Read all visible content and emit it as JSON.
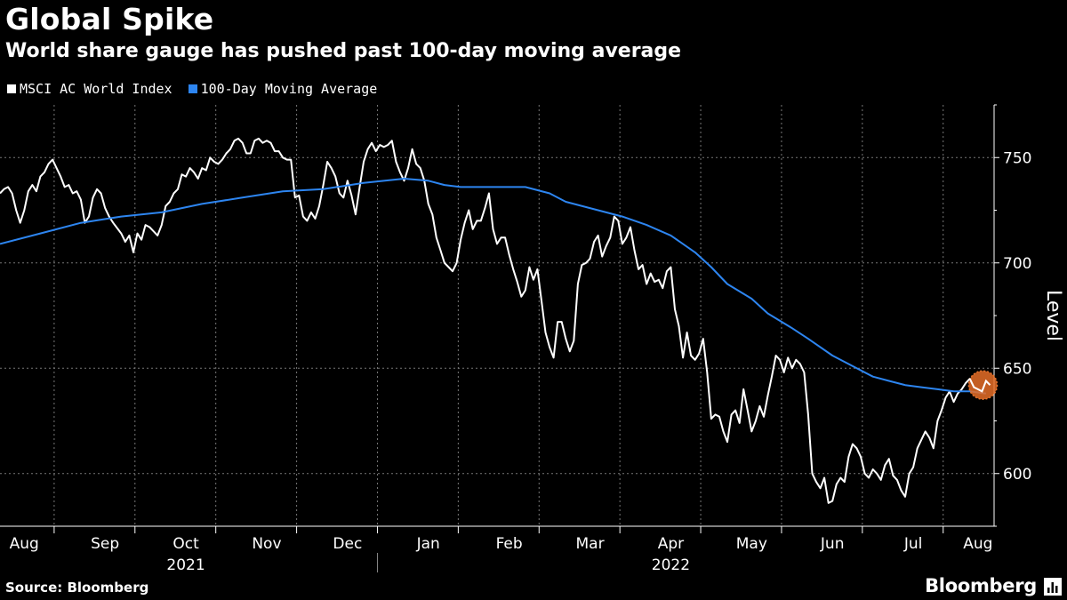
{
  "header": {
    "title": "Global Spike",
    "subtitle": "World share gauge has pushed past 100-day moving average"
  },
  "legend": [
    {
      "label": "MSCI AC World Index",
      "color": "#ffffff"
    },
    {
      "label": "100-Day Moving Average",
      "color": "#2d85f0"
    }
  ],
  "footer": {
    "source": "Source: Bloomberg",
    "brand": "Bloomberg"
  },
  "chart_data": {
    "type": "line",
    "title": "Global Spike",
    "subtitle": "World share gauge has pushed past 100-day moving average",
    "ylabel": "Level",
    "xlabel": "",
    "ylim": [
      575,
      775
    ],
    "yticks": [
      600,
      650,
      700,
      750
    ],
    "grid": true,
    "legend_position": "top-left",
    "x_domain": [
      0,
      12.3
    ],
    "month_labels": [
      {
        "label": "Aug",
        "x": 0.3
      },
      {
        "label": "Sep",
        "x": 1.3
      },
      {
        "label": "Oct",
        "x": 2.3
      },
      {
        "label": "Nov",
        "x": 3.3
      },
      {
        "label": "Dec",
        "x": 4.3
      },
      {
        "label": "Jan",
        "x": 5.3
      },
      {
        "label": "Feb",
        "x": 6.3
      },
      {
        "label": "Mar",
        "x": 7.3
      },
      {
        "label": "Apr",
        "x": 8.3
      },
      {
        "label": "May",
        "x": 9.3
      },
      {
        "label": "Jun",
        "x": 10.3
      },
      {
        "label": "Jul",
        "x": 11.3
      },
      {
        "label": "Aug",
        "x": 12.1
      }
    ],
    "month_separators": [
      0.67,
      1.67,
      2.67,
      3.67,
      4.67,
      5.67,
      6.67,
      7.67,
      8.67,
      9.67,
      10.67,
      11.67
    ],
    "year_labels": [
      {
        "label": "2021",
        "x": 2.3
      },
      {
        "label": "2022",
        "x": 8.3
      }
    ],
    "year_separator": 4.67,
    "highlight": {
      "x": 12.25,
      "y": 642
    },
    "series": [
      {
        "name": "MSCI AC World Index",
        "color": "#ffffff",
        "points": [
          [
            0.0,
            733
          ],
          [
            0.05,
            735
          ],
          [
            0.1,
            736
          ],
          [
            0.15,
            733
          ],
          [
            0.2,
            725
          ],
          [
            0.25,
            719
          ],
          [
            0.3,
            725
          ],
          [
            0.35,
            734
          ],
          [
            0.4,
            737
          ],
          [
            0.45,
            734
          ],
          [
            0.5,
            741
          ],
          [
            0.55,
            743
          ],
          [
            0.6,
            747
          ],
          [
            0.65,
            749
          ],
          [
            0.7,
            745
          ],
          [
            0.75,
            741
          ],
          [
            0.8,
            736
          ],
          [
            0.85,
            737
          ],
          [
            0.9,
            733
          ],
          [
            0.95,
            734
          ],
          [
            1.0,
            730
          ],
          [
            1.05,
            719
          ],
          [
            1.1,
            722
          ],
          [
            1.15,
            731
          ],
          [
            1.2,
            735
          ],
          [
            1.25,
            733
          ],
          [
            1.3,
            726
          ],
          [
            1.35,
            722
          ],
          [
            1.4,
            719
          ],
          [
            1.5,
            714
          ],
          [
            1.55,
            710
          ],
          [
            1.6,
            713
          ],
          [
            1.65,
            705
          ],
          [
            1.7,
            714
          ],
          [
            1.75,
            711
          ],
          [
            1.8,
            718
          ],
          [
            1.85,
            717
          ],
          [
            1.9,
            715
          ],
          [
            1.95,
            713
          ],
          [
            2.0,
            718
          ],
          [
            2.05,
            727
          ],
          [
            2.1,
            729
          ],
          [
            2.15,
            733
          ],
          [
            2.2,
            735
          ],
          [
            2.25,
            742
          ],
          [
            2.3,
            741
          ],
          [
            2.35,
            745
          ],
          [
            2.4,
            743
          ],
          [
            2.45,
            740
          ],
          [
            2.5,
            745
          ],
          [
            2.55,
            744
          ],
          [
            2.6,
            750
          ],
          [
            2.65,
            748
          ],
          [
            2.7,
            747
          ],
          [
            2.75,
            749
          ],
          [
            2.8,
            752
          ],
          [
            2.85,
            754
          ],
          [
            2.9,
            758
          ],
          [
            2.95,
            759
          ],
          [
            3.0,
            757
          ],
          [
            3.05,
            752
          ],
          [
            3.1,
            752
          ],
          [
            3.15,
            758
          ],
          [
            3.2,
            759
          ],
          [
            3.25,
            757
          ],
          [
            3.3,
            758
          ],
          [
            3.35,
            757
          ],
          [
            3.4,
            753
          ],
          [
            3.45,
            753
          ],
          [
            3.5,
            750
          ],
          [
            3.55,
            749
          ],
          [
            3.6,
            749
          ],
          [
            3.65,
            731
          ],
          [
            3.7,
            732
          ],
          [
            3.75,
            722
          ],
          [
            3.8,
            720
          ],
          [
            3.85,
            724
          ],
          [
            3.9,
            721
          ],
          [
            3.95,
            727
          ],
          [
            4.0,
            737
          ],
          [
            4.05,
            748
          ],
          [
            4.1,
            745
          ],
          [
            4.15,
            741
          ],
          [
            4.2,
            733
          ],
          [
            4.25,
            731
          ],
          [
            4.3,
            739
          ],
          [
            4.35,
            732
          ],
          [
            4.4,
            723
          ],
          [
            4.45,
            736
          ],
          [
            4.5,
            748
          ],
          [
            4.55,
            754
          ],
          [
            4.6,
            757
          ],
          [
            4.65,
            753
          ],
          [
            4.7,
            756
          ],
          [
            4.75,
            755
          ],
          [
            4.8,
            756
          ],
          [
            4.85,
            758
          ],
          [
            4.9,
            748
          ],
          [
            4.95,
            743
          ],
          [
            5.0,
            739
          ],
          [
            5.05,
            745
          ],
          [
            5.1,
            754
          ],
          [
            5.15,
            747
          ],
          [
            5.2,
            745
          ],
          [
            5.25,
            739
          ],
          [
            5.3,
            728
          ],
          [
            5.35,
            723
          ],
          [
            5.4,
            712
          ],
          [
            5.45,
            706
          ],
          [
            5.5,
            700
          ],
          [
            5.55,
            698
          ],
          [
            5.6,
            696
          ],
          [
            5.65,
            700
          ],
          [
            5.7,
            711
          ],
          [
            5.75,
            719
          ],
          [
            5.8,
            725
          ],
          [
            5.85,
            716
          ],
          [
            5.9,
            720
          ],
          [
            5.95,
            720
          ],
          [
            6.0,
            726
          ],
          [
            6.05,
            733
          ],
          [
            6.1,
            716
          ],
          [
            6.15,
            709
          ],
          [
            6.2,
            712
          ],
          [
            6.25,
            712
          ],
          [
            6.3,
            704
          ],
          [
            6.35,
            697
          ],
          [
            6.4,
            691
          ],
          [
            6.45,
            684
          ],
          [
            6.5,
            687
          ],
          [
            6.55,
            698
          ],
          [
            6.6,
            692
          ],
          [
            6.65,
            697
          ],
          [
            6.7,
            682
          ],
          [
            6.75,
            667
          ],
          [
            6.8,
            660
          ],
          [
            6.85,
            655
          ],
          [
            6.9,
            672
          ],
          [
            6.95,
            672
          ],
          [
            7.0,
            664
          ],
          [
            7.05,
            658
          ],
          [
            7.1,
            663
          ],
          [
            7.15,
            690
          ],
          [
            7.2,
            699
          ],
          [
            7.25,
            700
          ],
          [
            7.3,
            702
          ],
          [
            7.35,
            710
          ],
          [
            7.4,
            713
          ],
          [
            7.45,
            703
          ],
          [
            7.5,
            708
          ],
          [
            7.55,
            712
          ],
          [
            7.6,
            722
          ],
          [
            7.65,
            720
          ],
          [
            7.7,
            709
          ],
          [
            7.75,
            712
          ],
          [
            7.8,
            717
          ],
          [
            7.85,
            706
          ],
          [
            7.9,
            697
          ],
          [
            7.95,
            699
          ],
          [
            8.0,
            690
          ],
          [
            8.05,
            695
          ],
          [
            8.1,
            691
          ],
          [
            8.15,
            692
          ],
          [
            8.2,
            688
          ],
          [
            8.25,
            696
          ],
          [
            8.3,
            698
          ],
          [
            8.35,
            678
          ],
          [
            8.4,
            670
          ],
          [
            8.45,
            655
          ],
          [
            8.5,
            667
          ],
          [
            8.55,
            656
          ],
          [
            8.6,
            654
          ],
          [
            8.65,
            657
          ],
          [
            8.7,
            664
          ],
          [
            8.75,
            648
          ],
          [
            8.8,
            626
          ],
          [
            8.85,
            628
          ],
          [
            8.9,
            627
          ],
          [
            8.95,
            620
          ],
          [
            9.0,
            615
          ],
          [
            9.05,
            628
          ],
          [
            9.1,
            630
          ],
          [
            9.15,
            624
          ],
          [
            9.2,
            640
          ],
          [
            9.25,
            630
          ],
          [
            9.3,
            620
          ],
          [
            9.35,
            625
          ],
          [
            9.4,
            632
          ],
          [
            9.45,
            627
          ],
          [
            9.5,
            637
          ],
          [
            9.55,
            646
          ],
          [
            9.6,
            656
          ],
          [
            9.65,
            654
          ],
          [
            9.7,
            648
          ],
          [
            9.75,
            655
          ],
          [
            9.8,
            650
          ],
          [
            9.85,
            654
          ],
          [
            9.9,
            652
          ],
          [
            9.95,
            648
          ],
          [
            10.0,
            628
          ],
          [
            10.05,
            600
          ],
          [
            10.1,
            596
          ],
          [
            10.15,
            593
          ],
          [
            10.2,
            598
          ],
          [
            10.25,
            586
          ],
          [
            10.3,
            587
          ],
          [
            10.35,
            595
          ],
          [
            10.4,
            598
          ],
          [
            10.45,
            596
          ],
          [
            10.5,
            608
          ],
          [
            10.55,
            614
          ],
          [
            10.6,
            612
          ],
          [
            10.65,
            608
          ],
          [
            10.7,
            600
          ],
          [
            10.75,
            598
          ],
          [
            10.8,
            602
          ],
          [
            10.85,
            600
          ],
          [
            10.9,
            597
          ],
          [
            10.95,
            604
          ],
          [
            11.0,
            607
          ],
          [
            11.05,
            599
          ],
          [
            11.1,
            597
          ],
          [
            11.15,
            592
          ],
          [
            11.2,
            589
          ],
          [
            11.25,
            600
          ],
          [
            11.3,
            603
          ],
          [
            11.35,
            612
          ],
          [
            11.4,
            616
          ],
          [
            11.45,
            620
          ],
          [
            11.5,
            617
          ],
          [
            11.55,
            612
          ],
          [
            11.6,
            625
          ],
          [
            11.65,
            630
          ],
          [
            11.7,
            636
          ],
          [
            11.75,
            639
          ],
          [
            11.8,
            634
          ],
          [
            11.85,
            638
          ],
          [
            11.9,
            640
          ],
          [
            11.95,
            643
          ],
          [
            12.0,
            645
          ],
          [
            12.05,
            641
          ],
          [
            12.1,
            640
          ],
          [
            12.15,
            639
          ],
          [
            12.2,
            644
          ],
          [
            12.25,
            642
          ]
        ]
      },
      {
        "name": "100-Day Moving Average",
        "color": "#2d85f0",
        "points": [
          [
            0.0,
            709
          ],
          [
            0.5,
            714
          ],
          [
            1.0,
            719
          ],
          [
            1.5,
            722
          ],
          [
            2.0,
            724
          ],
          [
            2.5,
            728
          ],
          [
            3.0,
            731
          ],
          [
            3.5,
            734
          ],
          [
            4.0,
            735
          ],
          [
            4.5,
            738
          ],
          [
            5.0,
            740
          ],
          [
            5.3,
            739
          ],
          [
            5.5,
            737
          ],
          [
            5.7,
            736
          ],
          [
            6.0,
            736
          ],
          [
            6.5,
            736
          ],
          [
            6.8,
            733
          ],
          [
            7.0,
            729
          ],
          [
            7.3,
            726
          ],
          [
            7.7,
            722
          ],
          [
            8.0,
            718
          ],
          [
            8.3,
            713
          ],
          [
            8.6,
            705
          ],
          [
            8.8,
            698
          ],
          [
            9.0,
            690
          ],
          [
            9.3,
            683
          ],
          [
            9.5,
            676
          ],
          [
            9.8,
            669
          ],
          [
            10.0,
            664
          ],
          [
            10.3,
            656
          ],
          [
            10.6,
            650
          ],
          [
            10.8,
            646
          ],
          [
            11.0,
            644
          ],
          [
            11.2,
            642
          ],
          [
            11.4,
            641
          ],
          [
            11.6,
            640
          ],
          [
            11.8,
            639
          ],
          [
            12.0,
            639
          ],
          [
            12.2,
            638
          ]
        ]
      }
    ]
  }
}
